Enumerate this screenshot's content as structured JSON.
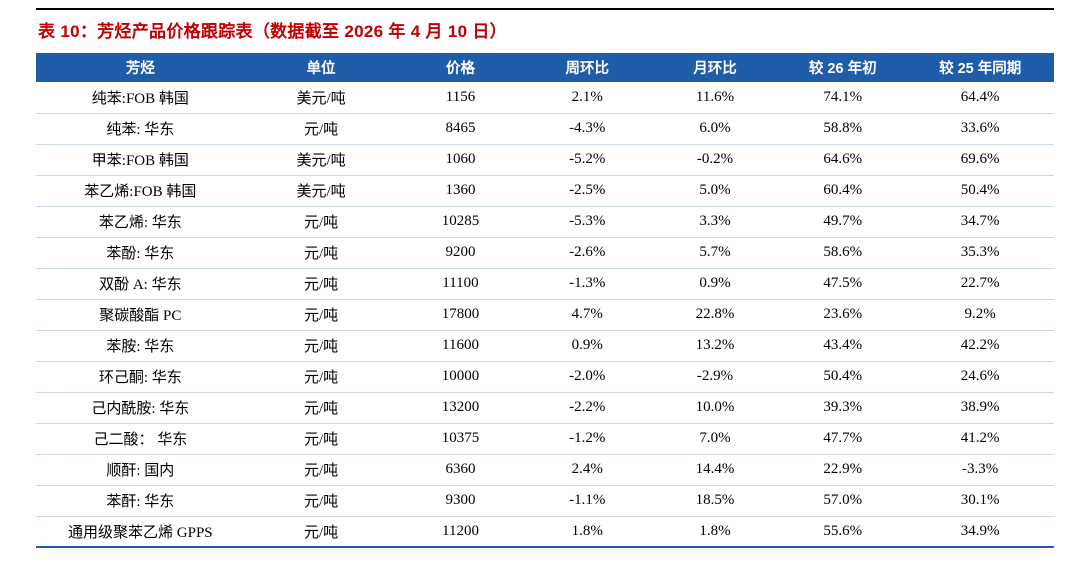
{
  "title": "表 10：芳烃产品价格跟踪表（数据截至 2026 年 4 月 10 日）",
  "table": {
    "columns": [
      "芳烃",
      "单位",
      "价格",
      "周环比",
      "月环比",
      "较 26 年初",
      "较 25 年同期"
    ],
    "rows": [
      [
        "纯苯:FOB 韩国",
        "美元/吨",
        "1156",
        "2.1%",
        "11.6%",
        "74.1%",
        "64.4%"
      ],
      [
        "纯苯: 华东",
        "元/吨",
        "8465",
        "-4.3%",
        "6.0%",
        "58.8%",
        "33.6%"
      ],
      [
        "甲苯:FOB 韩国",
        "美元/吨",
        "1060",
        "-5.2%",
        "-0.2%",
        "64.6%",
        "69.6%"
      ],
      [
        "苯乙烯:FOB 韩国",
        "美元/吨",
        "1360",
        "-2.5%",
        "5.0%",
        "60.4%",
        "50.4%"
      ],
      [
        "苯乙烯: 华东",
        "元/吨",
        "10285",
        "-5.3%",
        "3.3%",
        "49.7%",
        "34.7%"
      ],
      [
        "苯酚: 华东",
        "元/吨",
        "9200",
        "-2.6%",
        "5.7%",
        "58.6%",
        "35.3%"
      ],
      [
        "双酚 A: 华东",
        "元/吨",
        "11100",
        "-1.3%",
        "0.9%",
        "47.5%",
        "22.7%"
      ],
      [
        "聚碳酸酯 PC",
        "元/吨",
        "17800",
        "4.7%",
        "22.8%",
        "23.6%",
        "9.2%"
      ],
      [
        "苯胺: 华东",
        "元/吨",
        "11600",
        "0.9%",
        "13.2%",
        "43.4%",
        "42.2%"
      ],
      [
        "环己酮: 华东",
        "元/吨",
        "10000",
        "-2.0%",
        "-2.9%",
        "50.4%",
        "24.6%"
      ],
      [
        "己内酰胺: 华东",
        "元/吨",
        "13200",
        "-2.2%",
        "10.0%",
        "39.3%",
        "38.9%"
      ],
      [
        "己二酸： 华东",
        "元/吨",
        "10375",
        "-1.2%",
        "7.0%",
        "47.7%",
        "41.2%"
      ],
      [
        "顺酐: 国内",
        "元/吨",
        "6360",
        "2.4%",
        "14.4%",
        "22.9%",
        "-3.3%"
      ],
      [
        "苯酐: 华东",
        "元/吨",
        "9300",
        "-1.1%",
        "18.5%",
        "57.0%",
        "30.1%"
      ],
      [
        "通用级聚苯乙烯 GPPS",
        "元/吨",
        "11200",
        "1.8%",
        "1.8%",
        "55.6%",
        "34.9%"
      ]
    ]
  },
  "colors": {
    "header_bg": "#1F5CA9",
    "title_color": "#C00000",
    "grid_color": "#CBD8EB",
    "top_rule": "#000000"
  }
}
